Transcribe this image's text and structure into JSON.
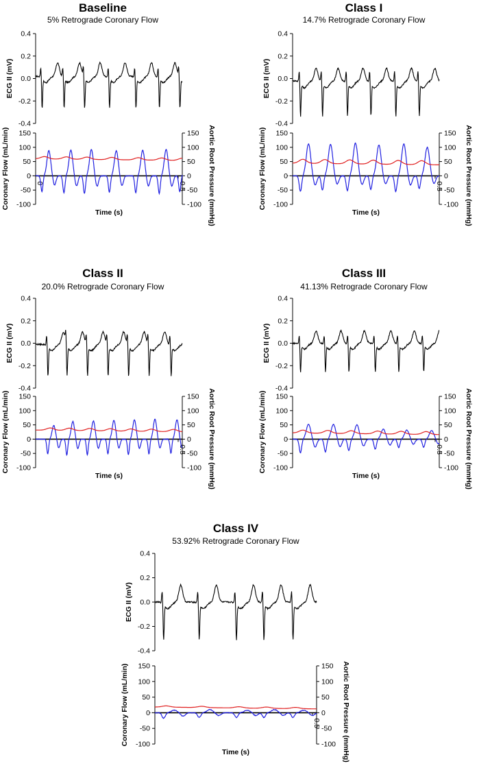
{
  "figure_title": "",
  "chart_data": [
    {
      "type": "line",
      "title": "Baseline",
      "subtitle": "5% Retrograde Coronary Flow",
      "retrograde_percent": 5,
      "ecg": {
        "ylabel": "ECG II (mV)",
        "ylim": [
          -0.4,
          0.4
        ],
        "yticks": [
          "0.4",
          "0.2",
          "0.0",
          "-0.2",
          "-0.4"
        ],
        "beats": [
          0.04,
          0.19,
          0.33,
          0.5,
          0.68,
          0.84,
          0.98
        ],
        "amp": 1.0,
        "stdepth": 0.16,
        "twave": 0.06,
        "baseline": 0.02
      },
      "flow": {
        "ylabel": "Coronary Flow (mL/min)",
        "ylim": [
          -100,
          150
        ],
        "yticks": [
          "150",
          "100",
          "50",
          "0",
          "-50",
          "-100"
        ],
        "y2label": "Aortic Root Pressure (mmHg)",
        "y2ticks": [
          "150",
          "100",
          "50",
          "0",
          "-50",
          "-100"
        ],
        "xlabel": "Time (s)",
        "xticks": [
          "0",
          "0.5"
        ],
        "x0_visible": true,
        "flow_peaks": [
          88,
          90,
          92,
          88,
          90,
          92,
          85
        ],
        "flow_troughs": [
          -55,
          -60,
          -62,
          -58,
          -60,
          -62,
          -55
        ],
        "pressure_mean": 63,
        "pressure_pulse": 8
      }
    },
    {
      "type": "line",
      "title": "Class I",
      "subtitle": "14.7% Retrograde Coronary Flow",
      "retrograde_percent": 14.7,
      "ecg": {
        "ylabel": "ECG II (mV)",
        "ylim": [
          -0.4,
          0.4
        ],
        "yticks": [
          "0.4",
          "0.2",
          "0.0",
          "-0.2",
          "-0.4"
        ],
        "beats": [
          0.05,
          0.2,
          0.37,
          0.53,
          0.7,
          0.86
        ],
        "amp": 1.1,
        "stdepth": 0.18,
        "twave": 0.05,
        "baseline": -0.02
      },
      "flow": {
        "ylabel": "Coronary Flow (mL/min)",
        "ylim": [
          -100,
          150
        ],
        "yticks": [
          "150",
          "100",
          "50",
          "0",
          "-50",
          "-100"
        ],
        "y2label": "Aortic Root Pressure (mmHg)",
        "y2ticks": [
          "150",
          "100",
          "50",
          "0",
          "-50",
          "-100"
        ],
        "xlabel": "Time (s)",
        "xticks": [
          "0.5"
        ],
        "x0_visible": false,
        "flow_peaks": [
          112,
          110,
          115,
          108,
          112,
          100
        ],
        "flow_troughs": [
          -55,
          -50,
          -52,
          -48,
          -55,
          -45
        ],
        "pressure_mean": 50,
        "pressure_pulse": 14
      }
    },
    {
      "type": "line",
      "title": "Class II",
      "subtitle": "20.0% Retrograde Coronary Flow",
      "retrograde_percent": 20.0,
      "ecg": {
        "ylabel": "ECG II (mV)",
        "ylim": [
          -0.4,
          0.4
        ],
        "yticks": [
          "0.4",
          "0.2",
          "0.0",
          "-0.2",
          "-0.4"
        ],
        "beats": [
          0.08,
          0.21,
          0.35,
          0.49,
          0.63,
          0.77,
          0.92
        ],
        "amp": 1.0,
        "stdepth": 0.16,
        "twave": 0.05,
        "baseline": -0.01
      },
      "flow": {
        "ylabel": "Coronary Flow (mL/min)",
        "ylim": [
          -100,
          150
        ],
        "yticks": [
          "150",
          "100",
          "50",
          "0",
          "-50",
          "-100"
        ],
        "y2label": "Aortic Root Pressure (mmHg)",
        "y2ticks": [
          "150",
          "100",
          "50",
          "0",
          "-50",
          "-100"
        ],
        "xlabel": "Time (s)",
        "xticks": [
          "0.5"
        ],
        "x0_visible": false,
        "flow_peaks": [
          48,
          62,
          64,
          66,
          68,
          70,
          68,
          60
        ],
        "flow_troughs": [
          -52,
          -55,
          -55,
          -52,
          -55,
          -52,
          -50,
          -48
        ],
        "pressure_mean": 35,
        "pressure_pulse": 8
      }
    },
    {
      "type": "line",
      "title": "Class III",
      "subtitle": "41.13% Retrograde Coronary Flow",
      "retrograde_percent": 41.13,
      "ecg": {
        "ylabel": "ECG II (mV)",
        "ylim": [
          -0.4,
          0.4
        ],
        "yticks": [
          "0.4",
          "0.2",
          "0.0",
          "-0.2",
          "-0.4"
        ],
        "beats": [
          0.05,
          0.22,
          0.38,
          0.56,
          0.72,
          0.89
        ],
        "amp": 0.9,
        "stdepth": 0.15,
        "twave": 0.05,
        "baseline": 0.0
      },
      "flow": {
        "ylabel": "Coronary Flow (mL/min)",
        "ylim": [
          -100,
          150
        ],
        "yticks": [
          "150",
          "100",
          "50",
          "0",
          "-50",
          "-100"
        ],
        "y2label": "Aortic Root Pressure (mmHg)",
        "y2ticks": [
          "150",
          "100",
          "50",
          "0",
          "-50",
          "-100"
        ],
        "xlabel": "Time (s)",
        "xticks": [
          "0.5"
        ],
        "x0_visible": false,
        "flow_peaks": [
          52,
          52,
          50,
          35,
          32,
          30
        ],
        "flow_troughs": [
          -48,
          -45,
          -40,
          -35,
          -30,
          -28
        ],
        "pressure_mean": 26,
        "pressure_pulse": 10
      }
    },
    {
      "type": "line",
      "title": "Class IV",
      "subtitle": "53.92% Retrograde Coronary Flow",
      "retrograde_percent": 53.92,
      "ecg": {
        "ylabel": "ECG II (mV)",
        "ylim": [
          -0.4,
          0.4
        ],
        "yticks": [
          "0.4",
          "0.2",
          "0.0",
          "-0.2",
          "-0.4"
        ],
        "beats": [
          0.05,
          0.27,
          0.5,
          0.67,
          0.85
        ],
        "amp": 1.1,
        "stdepth": 0.15,
        "twave": 0.08,
        "baseline": 0.0
      },
      "flow": {
        "ylabel": "Coronary Flow (mL/min)",
        "ylim": [
          -100,
          150
        ],
        "yticks": [
          "150",
          "100",
          "50",
          "0",
          "-50",
          "-100"
        ],
        "y2label": "Aortic Root Pressure (mmHg)",
        "y2ticks": [
          "150",
          "100",
          "50",
          "0",
          "-50",
          "-100"
        ],
        "xlabel": "Time (s)",
        "xticks": [
          "0.5"
        ],
        "x0_visible": false,
        "flow_peaks": [
          8,
          10,
          8,
          10,
          8
        ],
        "flow_troughs": [
          -18,
          -15,
          -15,
          -15,
          -15
        ],
        "pressure_mean": 20,
        "pressure_pulse": 4
      }
    }
  ],
  "colors": {
    "ecg": "#000000",
    "flow": "#1f1fe0",
    "pressure": "#e01f1f",
    "axis": "#000000"
  }
}
